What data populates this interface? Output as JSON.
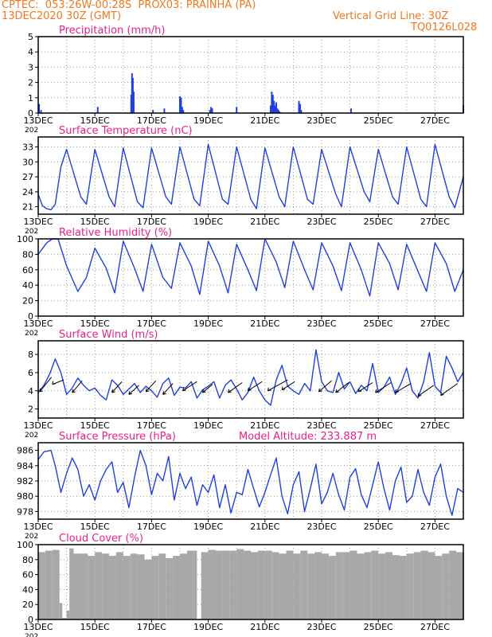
{
  "header": {
    "line1": "CPTEC:  053:26W-00:28S  PROX03: PRAINHA (PA)",
    "line2": "13DEC2020 30Z (GMT)",
    "grid_note": "Vertical Grid Line: 30Z",
    "code": "TQ0126L028"
  },
  "colors": {
    "header": "#f07820",
    "panel_title": "#e8208c",
    "series": "#2040e0",
    "cloud": "#a8a8a8",
    "axis": "#000000",
    "grid": "#9a9a9a"
  },
  "x_axis": {
    "range": [
      0,
      15
    ],
    "ticks": [
      0,
      2,
      4,
      6,
      8,
      10,
      12,
      14
    ],
    "tick_labels": [
      "13DEC",
      "15DEC",
      "17DEC",
      "19DEC",
      "21DEC",
      "23DEC",
      "25DEC",
      "27DEC"
    ],
    "year_fragment": "202",
    "gridlines": [
      1,
      2,
      3,
      4,
      5,
      6,
      7,
      8,
      9,
      10,
      11,
      12,
      13,
      14
    ]
  },
  "chart_data": [
    {
      "type": "bar",
      "title": "Precipitation (mm/h)",
      "ylim": [
        0,
        5
      ],
      "yticks": [
        0,
        1,
        2,
        3,
        4,
        5
      ],
      "x": [
        0.03,
        0.1,
        2.1,
        3.28,
        3.31,
        3.34,
        3.37,
        4.05,
        4.45,
        5.0,
        5.04,
        5.08,
        5.12,
        6.06,
        6.1,
        6.14,
        7.0,
        8.2,
        8.24,
        8.28,
        8.32,
        8.36,
        8.4,
        8.44,
        8.48,
        8.52,
        9.2,
        9.24,
        9.28,
        11.04,
        15.0
      ],
      "values": [
        0.6,
        0.2,
        0.4,
        1.2,
        2.6,
        2.3,
        1.4,
        0.2,
        0.3,
        1.1,
        1.0,
        0.4,
        0.2,
        0.2,
        0.4,
        0.3,
        0.4,
        0.5,
        1.4,
        1.2,
        0.8,
        0.5,
        0.7,
        0.3,
        0.2,
        0.1,
        0.8,
        0.6,
        0.2,
        0.3,
        0.5
      ]
    },
    {
      "type": "line",
      "title": "Surface Temperature (nC)",
      "ylim": [
        19.5,
        35
      ],
      "yticks": [
        21,
        24,
        27,
        30,
        33
      ],
      "x": [
        0,
        0.15,
        0.3,
        0.45,
        0.6,
        0.8,
        1.0,
        1.5,
        1.7,
        2.0,
        2.5,
        2.7,
        3.0,
        3.5,
        3.7,
        4.0,
        4.5,
        4.7,
        5.0,
        5.5,
        5.7,
        6.0,
        6.5,
        6.7,
        7.0,
        7.5,
        7.7,
        8.0,
        8.5,
        8.7,
        9.0,
        9.5,
        9.7,
        10.0,
        10.5,
        10.7,
        11.0,
        11.5,
        11.7,
        12.0,
        12.5,
        12.7,
        13.0,
        13.5,
        13.7,
        14.0,
        14.5,
        14.7,
        15.0
      ],
      "series": [
        {
          "values": [
            23.5,
            21.2,
            20.6,
            20.4,
            21.5,
            29.0,
            32.5,
            23.0,
            21.5,
            32.5,
            23.0,
            21.0,
            32.8,
            22.0,
            20.8,
            32.8,
            23.0,
            21.5,
            33.0,
            22.5,
            21.2,
            33.5,
            22.5,
            21.5,
            33.0,
            22.5,
            20.6,
            32.8,
            23.0,
            21.0,
            33.0,
            22.5,
            21.5,
            32.5,
            23.5,
            21.0,
            33.0,
            24.0,
            22.0,
            32.5,
            23.0,
            21.5,
            33.0,
            22.5,
            21.0,
            33.5,
            23.0,
            20.8,
            27.0
          ]
        }
      ]
    },
    {
      "type": "line",
      "title": "Relative Humidity (%)",
      "ylim": [
        0,
        100
      ],
      "yticks": [
        0,
        20,
        40,
        60,
        80,
        100
      ],
      "x": [
        0,
        0.3,
        0.5,
        0.7,
        1.0,
        1.4,
        1.7,
        2.0,
        2.4,
        2.7,
        3.0,
        3.4,
        3.7,
        4.0,
        4.4,
        4.7,
        5.0,
        5.4,
        5.7,
        6.0,
        6.4,
        6.7,
        7.0,
        7.4,
        7.7,
        8.0,
        8.4,
        8.7,
        9.0,
        9.4,
        9.7,
        10.0,
        10.4,
        10.7,
        11.0,
        11.4,
        11.7,
        12.0,
        12.4,
        12.7,
        13.0,
        13.4,
        13.7,
        14.0,
        14.4,
        14.7,
        15.0
      ],
      "series": [
        {
          "values": [
            80,
            95,
            100,
            100,
            65,
            32,
            50,
            88,
            62,
            30,
            97,
            62,
            32,
            93,
            50,
            36,
            95,
            65,
            28,
            97,
            65,
            30,
            93,
            60,
            33,
            100,
            70,
            37,
            97,
            60,
            34,
            95,
            65,
            33,
            95,
            60,
            26,
            95,
            68,
            34,
            93,
            58,
            32,
            95,
            68,
            32,
            60
          ]
        }
      ]
    },
    {
      "type": "line",
      "title": "Surface Wind (m/s)",
      "ylim": [
        1,
        9.5
      ],
      "yticks": [
        2,
        4,
        6,
        8
      ],
      "x": [
        0,
        0.2,
        0.4,
        0.6,
        0.8,
        1.0,
        1.2,
        1.4,
        1.6,
        1.8,
        2.0,
        2.2,
        2.4,
        2.6,
        2.8,
        3.0,
        3.2,
        3.4,
        3.6,
        3.8,
        4.0,
        4.2,
        4.4,
        4.6,
        4.8,
        5.0,
        5.2,
        5.4,
        5.6,
        5.8,
        6.0,
        6.2,
        6.4,
        6.6,
        6.8,
        7.0,
        7.2,
        7.4,
        7.6,
        7.8,
        8.0,
        8.2,
        8.4,
        8.6,
        8.8,
        9.0,
        9.2,
        9.4,
        9.6,
        9.8,
        10.0,
        10.2,
        10.4,
        10.6,
        10.8,
        11.0,
        11.2,
        11.4,
        11.6,
        11.8,
        12.0,
        12.2,
        12.4,
        12.6,
        12.8,
        13.0,
        13.2,
        13.4,
        13.6,
        13.8,
        14.0,
        14.2,
        14.4,
        14.6,
        14.8,
        15.0
      ],
      "series": [
        {
          "values": [
            3.8,
            4.6,
            5.8,
            7.5,
            6.0,
            3.6,
            4.3,
            5.4,
            4.6,
            4.0,
            4.3,
            3.5,
            3.0,
            5.2,
            4.6,
            3.6,
            4.2,
            4.8,
            3.8,
            4.5,
            4.0,
            3.3,
            4.8,
            5.4,
            3.5,
            4.4,
            4.3,
            5.0,
            3.2,
            4.1,
            4.5,
            5.0,
            3.2,
            4.6,
            5.2,
            4.2,
            3.0,
            3.8,
            5.5,
            4.0,
            3.0,
            2.4,
            5.2,
            6.8,
            4.5,
            4.0,
            3.6,
            4.8,
            4.0,
            8.5,
            5.0,
            4.0,
            3.8,
            6.0,
            4.2,
            5.0,
            3.7,
            4.6,
            4.0,
            7.0,
            3.8,
            4.4,
            5.5,
            3.6,
            4.8,
            6.5,
            4.0,
            3.2,
            5.0,
            8.2,
            4.5,
            3.8,
            7.8,
            6.5,
            5.0,
            6.0
          ]
        }
      ],
      "arrows": [
        {
          "x": 0.05,
          "y": 3.9,
          "dx": 0.42,
          "dy": 1.6
        },
        {
          "x": 0.5,
          "y": 4.7,
          "dx": 0.4,
          "dy": 0.5
        },
        {
          "x": 1.2,
          "y": 3.8,
          "dx": 0.35,
          "dy": 1.3
        },
        {
          "x": 2.6,
          "y": 3.8,
          "dx": 0.35,
          "dy": 1.2
        },
        {
          "x": 3.2,
          "y": 3.6,
          "dx": 0.35,
          "dy": 1.0
        },
        {
          "x": 3.8,
          "y": 3.9,
          "dx": 0.35,
          "dy": 1.2
        },
        {
          "x": 4.4,
          "y": 3.6,
          "dx": 0.35,
          "dy": 1.2
        },
        {
          "x": 5.1,
          "y": 4.0,
          "dx": 0.5,
          "dy": 1.0
        },
        {
          "x": 5.8,
          "y": 3.8,
          "dx": 0.35,
          "dy": 0.9
        },
        {
          "x": 6.7,
          "y": 3.8,
          "dx": 0.5,
          "dy": 1.1
        },
        {
          "x": 7.4,
          "y": 4.0,
          "dx": 0.5,
          "dy": 1.0
        },
        {
          "x": 8.1,
          "y": 4.0,
          "dx": 0.7,
          "dy": 1.2
        },
        {
          "x": 8.6,
          "y": 4.1,
          "dx": 0.45,
          "dy": 0.9
        },
        {
          "x": 9.9,
          "y": 3.9,
          "dx": 0.45,
          "dy": 1.2
        },
        {
          "x": 10.5,
          "y": 3.8,
          "dx": 0.45,
          "dy": 1.1
        },
        {
          "x": 11.3,
          "y": 3.9,
          "dx": 0.5,
          "dy": 1.0
        },
        {
          "x": 11.9,
          "y": 3.8,
          "dx": 0.55,
          "dy": 1.1
        },
        {
          "x": 12.6,
          "y": 3.8,
          "dx": 0.55,
          "dy": 1.0
        },
        {
          "x": 13.4,
          "y": 3.4,
          "dx": 0.55,
          "dy": 1.2
        },
        {
          "x": 14.2,
          "y": 3.5,
          "dx": 0.6,
          "dy": 1.3
        }
      ]
    },
    {
      "type": "line",
      "title": "Surface Pressure (hPa)",
      "subtitle": "Model Altitude: 233.887 m",
      "ylim": [
        977,
        987
      ],
      "yticks": [
        978,
        980,
        982,
        984,
        986
      ],
      "x": [
        0,
        0.2,
        0.45,
        0.6,
        0.8,
        1.0,
        1.2,
        1.4,
        1.6,
        1.8,
        2.0,
        2.2,
        2.4,
        2.6,
        2.8,
        3.0,
        3.2,
        3.4,
        3.6,
        3.8,
        4.0,
        4.2,
        4.4,
        4.6,
        4.8,
        5.0,
        5.2,
        5.4,
        5.6,
        5.8,
        6.0,
        6.2,
        6.4,
        6.6,
        6.8,
        7.0,
        7.2,
        7.4,
        7.6,
        7.8,
        8.0,
        8.2,
        8.4,
        8.6,
        8.8,
        9.0,
        9.2,
        9.4,
        9.6,
        9.8,
        10.0,
        10.2,
        10.4,
        10.6,
        10.8,
        11.0,
        11.2,
        11.4,
        11.6,
        11.8,
        12.0,
        12.2,
        12.4,
        12.6,
        12.8,
        13.0,
        13.2,
        13.4,
        13.6,
        13.8,
        14.0,
        14.2,
        14.4,
        14.6,
        14.8,
        15.0
      ],
      "series": [
        {
          "values": [
            984.8,
            985.8,
            986.0,
            984.0,
            980.5,
            983.0,
            985.0,
            983.5,
            980.0,
            981.5,
            979.5,
            982.0,
            983.5,
            984.5,
            980.5,
            981.8,
            978.5,
            982.5,
            986.0,
            984.0,
            980.2,
            983.0,
            982.0,
            985.2,
            979.5,
            983.0,
            981.0,
            982.5,
            978.8,
            981.5,
            980.5,
            982.8,
            978.5,
            981.5,
            977.8,
            980.5,
            980.2,
            983.5,
            981.0,
            978.6,
            980.5,
            982.8,
            985.0,
            980.0,
            977.7,
            981.5,
            983.2,
            978.0,
            981.0,
            984.2,
            979.0,
            980.5,
            983.0,
            980.2,
            978.2,
            982.5,
            983.6,
            980.2,
            978.5,
            981.5,
            984.5,
            981.0,
            978.2,
            982.0,
            983.8,
            979.2,
            980.0,
            983.5,
            980.5,
            978.8,
            982.5,
            984.2,
            980.0,
            977.5,
            981.0,
            980.5
          ]
        }
      ]
    },
    {
      "type": "bar",
      "title": "Cloud Cover (%)",
      "ylim": [
        0,
        100
      ],
      "yticks": [
        0,
        20,
        40,
        60,
        80,
        100
      ],
      "x": [
        0.0,
        0.25,
        0.5,
        0.75,
        0.85,
        1.0,
        1.1,
        1.25,
        1.5,
        1.75,
        2.0,
        2.25,
        2.5,
        2.75,
        3.0,
        3.25,
        3.5,
        3.75,
        4.0,
        4.25,
        4.5,
        4.75,
        5.0,
        5.25,
        5.5,
        5.6,
        5.75,
        6.0,
        6.25,
        6.5,
        6.75,
        7.0,
        7.25,
        7.5,
        7.75,
        8.0,
        8.25,
        8.5,
        8.75,
        9.0,
        9.25,
        9.5,
        9.75,
        10.0,
        10.25,
        10.5,
        10.75,
        11.0,
        11.25,
        11.5,
        11.75,
        12.0,
        12.25,
        12.5,
        12.75,
        13.0,
        13.25,
        13.5,
        13.75,
        14.0,
        14.25,
        14.5,
        14.75,
        15.0
      ],
      "values": [
        90,
        92,
        93,
        22,
        2,
        12,
        95,
        88,
        88,
        85,
        90,
        88,
        85,
        90,
        85,
        88,
        87,
        80,
        85,
        88,
        82,
        85,
        88,
        92,
        92,
        0,
        90,
        93,
        92,
        92,
        92,
        94,
        92,
        90,
        92,
        92,
        90,
        88,
        92,
        88,
        92,
        88,
        90,
        88,
        85,
        90,
        90,
        92,
        88,
        90,
        92,
        88,
        90,
        86,
        85,
        88,
        90,
        92,
        90,
        85,
        88,
        92,
        90,
        92
      ]
    }
  ]
}
